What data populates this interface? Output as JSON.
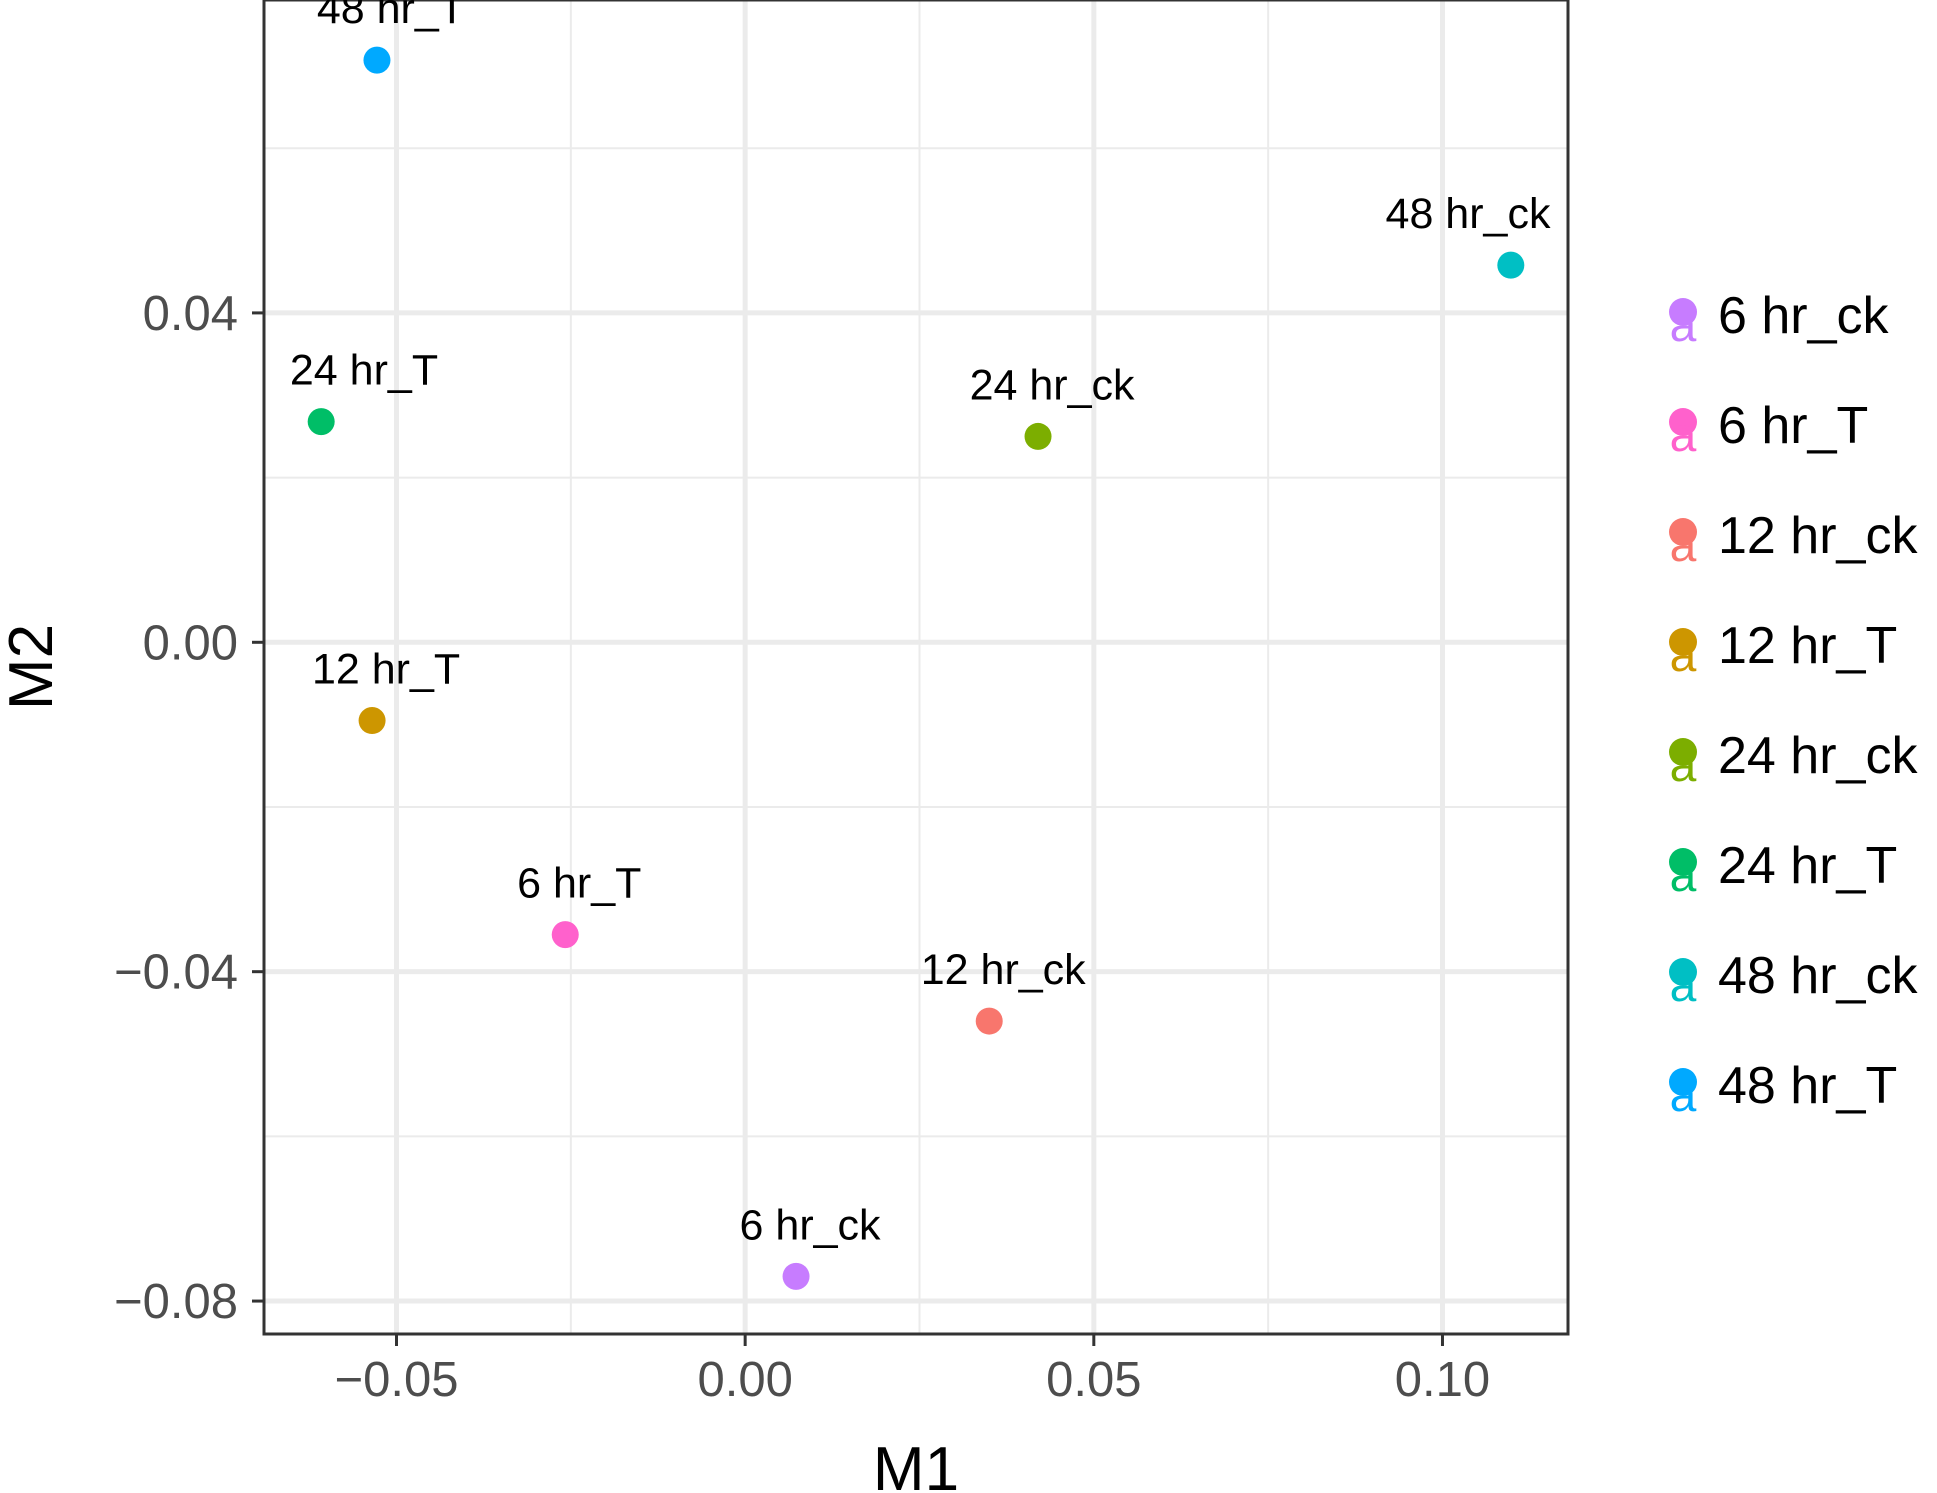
{
  "chart_data": {
    "type": "scatter",
    "xlabel": "M1",
    "ylabel": "M2",
    "xlim": [
      -0.069,
      0.118
    ],
    "ylim": [
      -0.084,
      0.078
    ],
    "x_ticks": [
      -0.05,
      0.0,
      0.05,
      0.1
    ],
    "x_tick_labels": [
      "−0.05",
      "0.00",
      "0.05",
      "0.10"
    ],
    "y_ticks": [
      -0.08,
      -0.04,
      0.0,
      0.04
    ],
    "y_tick_labels": [
      "−0.08",
      "−0.04",
      "0.00",
      "0.04"
    ],
    "grid": true,
    "legend_position": "right",
    "points": [
      {
        "name": "6 hr_ck",
        "x": 0.0073,
        "y": -0.077,
        "color": "#C77CFF"
      },
      {
        "name": "6 hr_T",
        "x": -0.0258,
        "y": -0.0355,
        "color": "#FF61CC"
      },
      {
        "name": "12 hr_ck",
        "x": 0.035,
        "y": -0.046,
        "color": "#F8766D"
      },
      {
        "name": "12 hr_T",
        "x": -0.0535,
        "y": -0.0095,
        "color": "#CD9600"
      },
      {
        "name": "24 hr_ck",
        "x": 0.042,
        "y": 0.025,
        "color": "#7CAE00"
      },
      {
        "name": "24 hr_T",
        "x": -0.0608,
        "y": 0.0268,
        "color": "#00BE67"
      },
      {
        "name": "48 hr_ck",
        "x": 0.1098,
        "y": 0.0458,
        "color": "#00BFC4"
      },
      {
        "name": "48 hr_T",
        "x": -0.0528,
        "y": 0.0707,
        "color": "#00A9FF"
      }
    ],
    "legend_entries": [
      "6 hr_ck",
      "6 hr_T",
      "12 hr_ck",
      "12 hr_T",
      "24 hr_ck",
      "24 hr_T",
      "48 hr_ck",
      "48 hr_T"
    ]
  }
}
